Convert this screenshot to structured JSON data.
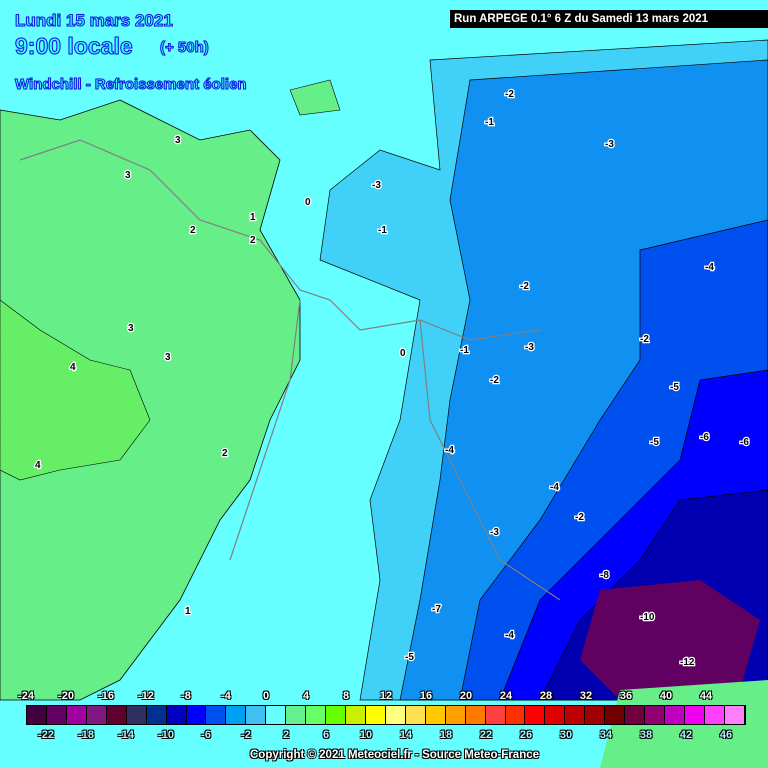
{
  "header": {
    "date": "Lundi 15 mars 2021",
    "time": "9:00 locale",
    "lead": "(+ 50h)",
    "variable": "Windchill - Refroissement éolien",
    "run": "Run ARPEGE 0.1° 6 Z du Samedi 13 mars 2021"
  },
  "legend": {
    "top_labels": [
      "-24",
      "-20",
      "-16",
      "-12",
      "-8",
      "-4",
      "0",
      "4",
      "8",
      "12",
      "16",
      "20",
      "24",
      "28",
      "32",
      "36",
      "40",
      "44"
    ],
    "bottom_labels": [
      "-22",
      "-18",
      "-14",
      "-10",
      "-6",
      "-2",
      "2",
      "6",
      "10",
      "14",
      "18",
      "22",
      "26",
      "30",
      "34",
      "38",
      "42",
      "46"
    ],
    "colors": [
      "#400040",
      "#600060",
      "#a000a0",
      "#801880",
      "#600030",
      "#303060",
      "#003090",
      "#0000c0",
      "#0000ff",
      "#0050f0",
      "#00a0f0",
      "#40c0f0",
      "#66ffff",
      "#66f090",
      "#66ff66",
      "#66ff00",
      "#c8f000",
      "#ffff00",
      "#ffff80",
      "#ffe050",
      "#ffc800",
      "#ffa000",
      "#ff7800",
      "#ff4040",
      "#ff3000",
      "#ff0000",
      "#e00000",
      "#c00000",
      "#a00000",
      "#700000",
      "#700040",
      "#900070",
      "#c000c0",
      "#f000f0",
      "#ff40ff",
      "#ff80ff"
    ]
  },
  "map": {
    "contour_labels": [
      "3",
      "3",
      "2",
      "2",
      "3",
      "4",
      "4",
      "3",
      "2",
      "1",
      "1",
      "0",
      "0",
      "-1",
      "-2",
      "-3",
      "-2",
      "-1",
      "-2",
      "-3",
      "-4",
      "-5",
      "-6",
      "-4",
      "-5",
      "-6",
      "-8",
      "-10",
      "-12",
      "-7",
      "-5",
      "-4",
      "-3",
      "-2",
      "-4",
      "-3",
      "-2",
      "-1"
    ]
  },
  "copyright": "Copyright © 2021 Meteociel.fr - Source Meteo-France"
}
